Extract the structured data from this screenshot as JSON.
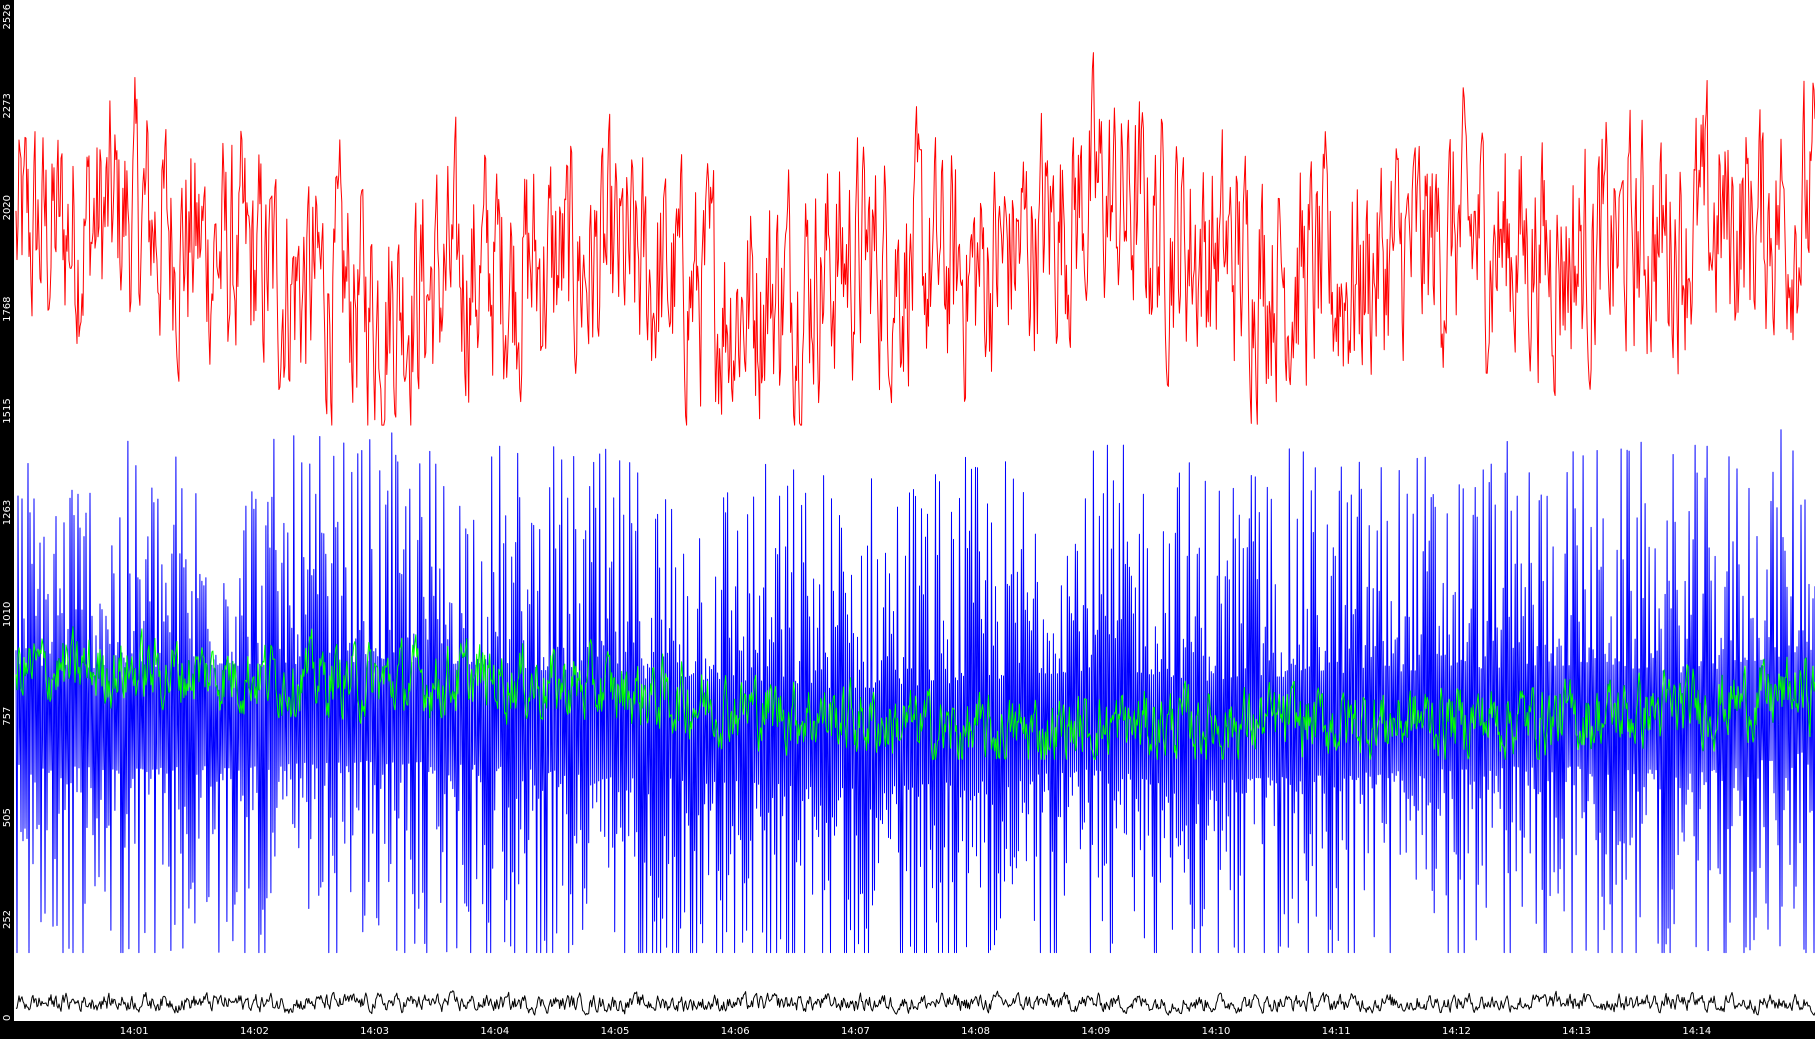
{
  "chart_data": {
    "type": "line",
    "title": "",
    "xlabel": "",
    "ylabel": "",
    "ylim": [
      0,
      2526
    ],
    "y_ticks": [
      "0",
      "252",
      "505",
      "757",
      "1010",
      "1263",
      "1515",
      "1768",
      "2020",
      "2273",
      "2526"
    ],
    "x_ticks": [
      "14:01",
      "14:02",
      "14:03",
      "14:04",
      "14:05",
      "14:06",
      "14:07",
      "14:08",
      "14:09",
      "14:10",
      "14:11",
      "14:12",
      "14:13",
      "14:14"
    ],
    "xlim": [
      "14:00:01",
      "14:14:59"
    ],
    "grid": false,
    "legend": "none",
    "series": [
      {
        "color": "#ff0000",
        "range": [
          1480,
          2500
        ],
        "x": [
          "14:00",
          "14:01",
          "14:02",
          "14:03",
          "14:04",
          "14:05",
          "14:06",
          "14:07",
          "14:08",
          "14:09",
          "14:10",
          "14:11",
          "14:12",
          "14:13",
          "14:14",
          "14:15"
        ],
        "values": [
          1940,
          2000,
          1860,
          1780,
          1870,
          1870,
          1780,
          1900,
          1850,
          2050,
          1900,
          1830,
          1950,
          1900,
          1960,
          2020
        ]
      },
      {
        "color": "#0000ff",
        "range": [
          170,
          1800
        ],
        "x": [
          "14:00",
          "14:01",
          "14:02",
          "14:03",
          "14:04",
          "14:05",
          "14:06",
          "14:07",
          "14:08",
          "14:09",
          "14:10",
          "14:11",
          "14:12",
          "14:13",
          "14:14",
          "14:15"
        ],
        "values": [
          760,
          750,
          760,
          770,
          760,
          730,
          720,
          700,
          720,
          750,
          720,
          740,
          750,
          760,
          740,
          800
        ]
      },
      {
        "color": "#00ff00",
        "range": [
          650,
          1000
        ],
        "x": [
          "14:00",
          "14:01",
          "14:02",
          "14:03",
          "14:04",
          "14:05",
          "14:06",
          "14:07",
          "14:08",
          "14:09",
          "14:10",
          "14:11",
          "14:12",
          "14:13",
          "14:14",
          "14:15"
        ],
        "values": [
          870,
          870,
          860,
          840,
          850,
          820,
          780,
          750,
          710,
          730,
          740,
          740,
          750,
          750,
          780,
          820
        ]
      },
      {
        "color": "#000000",
        "range": [
          10,
          80
        ],
        "x": [
          "14:00",
          "14:01",
          "14:02",
          "14:03",
          "14:04",
          "14:05",
          "14:06",
          "14:07",
          "14:08",
          "14:09",
          "14:10",
          "14:11",
          "14:12",
          "14:13",
          "14:14",
          "14:15"
        ],
        "values": [
          45,
          48,
          45,
          45,
          44,
          44,
          44,
          45,
          45,
          46,
          45,
          45,
          46,
          46,
          45,
          45
        ]
      }
    ]
  }
}
